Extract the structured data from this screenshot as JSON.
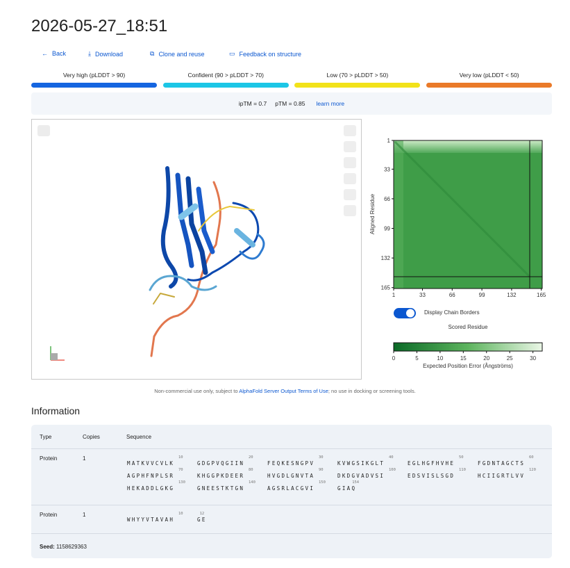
{
  "header": {
    "title": "2026-05-27_18:51"
  },
  "actions": [
    "Back",
    "Download",
    "Clone and reuse",
    "Feedback on structure"
  ],
  "confidence_legend": [
    {
      "label": "Very high (pLDDT > 90)",
      "color": "#1565e0"
    },
    {
      "label": "Confident (90 > pLDDT > 70)",
      "color": "#1cc6e6"
    },
    {
      "label": "Low (70 > pLDDT > 50)",
      "color": "#f2e21a"
    },
    {
      "label": "Very low (pLDDT < 50)",
      "color": "#ea7a29"
    }
  ],
  "metrics": {
    "iptm": "ipTM = 0.7",
    "ptm": "pTM = 0.85",
    "link": "learn more"
  },
  "pae": {
    "y_label": "Aligned Residue",
    "x_label": "Scored Residue",
    "toggle": "Display Chain Borders",
    "lim": [
      1,
      166
    ],
    "ticks": [
      1,
      33,
      66,
      99,
      132,
      165
    ],
    "colorbar": {
      "label": "Expected Position Error (Ångströms)",
      "lim": [
        0,
        32
      ],
      "ticks": [
        0,
        5,
        10,
        15,
        20,
        25,
        30
      ]
    }
  },
  "footnote": {
    "before": "Non-commercial use only, subject to ",
    "link": "AlphaFold Server Output Terms of Use",
    "after": "; no use in docking or screening tools."
  },
  "information": {
    "heading": "Information",
    "columns": [
      "Type",
      "Copies",
      "Sequence"
    ],
    "rows": [
      {
        "type": "Protein",
        "copies": "1",
        "chunks": [
          {
            "residues": "MATKVVCVLK",
            "end": 10
          },
          {
            "residues": "GDGPVQGIIN",
            "end": 20
          },
          {
            "residues": "FEQKESNGPV",
            "end": 30
          },
          {
            "residues": "KVWGSIKGLT",
            "end": 40
          },
          {
            "residues": "EGLHGFHVHE",
            "end": 50
          },
          {
            "residues": "FGDNTAGCTS",
            "end": 60
          },
          {
            "residues": "AGPHFNPLSR",
            "end": 70
          },
          {
            "residues": "KHGGPKDEER",
            "end": 80
          },
          {
            "residues": "HVGDLGNVTA",
            "end": 90
          },
          {
            "residues": "DKDGVADVSI",
            "end": 100
          },
          {
            "residues": "EDSVISLSGD",
            "end": 110
          },
          {
            "residues": "HCIIGRTLVV",
            "end": 120
          },
          {
            "residues": "HEKADDLGKG",
            "end": 130
          },
          {
            "residues": "GNEESTKTGN",
            "end": 140
          },
          {
            "residues": "AGSRLACGVI",
            "end": 150
          },
          {
            "residues": "GIAQ",
            "end": 154
          }
        ]
      },
      {
        "type": "Protein",
        "copies": "1",
        "chunks": [
          {
            "residues": "WHYYVTAVAH",
            "end": 10
          },
          {
            "residues": "GE",
            "end": 12
          }
        ]
      }
    ],
    "seed_label": "Seed:",
    "seed": "1158629363"
  }
}
